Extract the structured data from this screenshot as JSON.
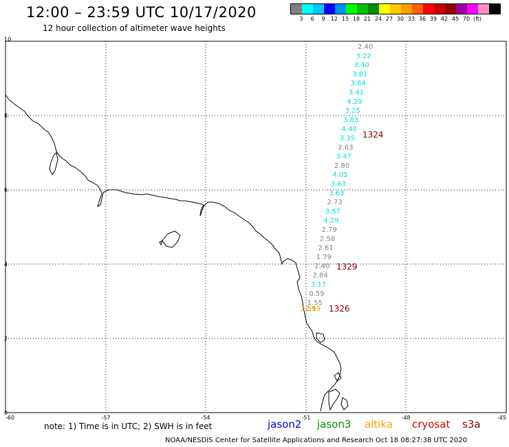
{
  "header": {
    "title": "12:00 – 23:59 UTC 10/17/2020",
    "subtitle": "12 hour collection of altimeter wave heights"
  },
  "legend": {
    "colors": [
      "#808080",
      "#00ffff",
      "#00c8ff",
      "#0000ff",
      "#0090ff",
      "#00ff00",
      "#00c000",
      "#009000",
      "#ffff00",
      "#ffc800",
      "#ffa000",
      "#ff6000",
      "#ff0000",
      "#c80000",
      "#900000",
      "#a000a0",
      "#ff00ff",
      "#ff90c8",
      "#000000"
    ],
    "labels": [
      "3",
      "6",
      "9",
      "12",
      "15",
      "18",
      "21",
      "24",
      "27",
      "30",
      "33",
      "36",
      "39",
      "42",
      "45",
      "70",
      "(ft)"
    ]
  },
  "axes": {
    "x_ticks": [
      "-60",
      "-57",
      "-54",
      "-51",
      "-48",
      "-45"
    ],
    "y_ticks": [
      "0",
      "2",
      "4",
      "6",
      "8",
      "10"
    ]
  },
  "observations": {
    "track1": {
      "values": [
        "2.40",
        "3.22",
        "3.40",
        "3.81",
        "3.64",
        "3.41",
        "4.29",
        "3.25",
        "3.83",
        "4.40",
        "3.35",
        "2.63",
        "3.47",
        "2.80",
        "4.05",
        "3.63",
        "3.63",
        "2.73",
        "3.57",
        "4.29",
        "2.79",
        "2.58",
        "2.61",
        "1.79",
        "2.40",
        "2.84",
        "3.17",
        "0.59",
        "1.55"
      ],
      "colors": [
        "#7f7f7f",
        "#00dede",
        "#00dede",
        "#00dede",
        "#00dede",
        "#00dede",
        "#00dede",
        "#00dede",
        "#00dede",
        "#00dede",
        "#00dede",
        "#7f7f7f",
        "#00dede",
        "#7f7f7f",
        "#00dede",
        "#00dede",
        "#00dede",
        "#7f7f7f",
        "#00dede",
        "#00dede",
        "#7f7f7f",
        "#7f7f7f",
        "#7f7f7f",
        "#7f7f7f",
        "#7f7f7f",
        "#7f7f7f",
        "#00dede",
        "#7f7f7f",
        "#7f7f7f"
      ]
    },
    "track2": {
      "values": [
        "2.59",
        "2.59"
      ],
      "colors": [
        "#e0a000",
        "#e0a000"
      ]
    },
    "time_labels": [
      "1324",
      "1329",
      "1326"
    ],
    "time_color": "#800000"
  },
  "note": "note:  1) Time is in UTC;  2) SWH is in feet",
  "satellites": [
    {
      "name": "jason2",
      "color": "#0000e0"
    },
    {
      "name": "jason3",
      "color": "#009000"
    },
    {
      "name": "altika",
      "color": "#ffa000"
    },
    {
      "name": "cryosat",
      "color": "#e00000"
    },
    {
      "name": "s3a",
      "color": "#800000"
    }
  ],
  "footer": "NOAA/NESDIS Center for Satellite Applications and Research     Oct 18 08:27:38 UTC 2020"
}
